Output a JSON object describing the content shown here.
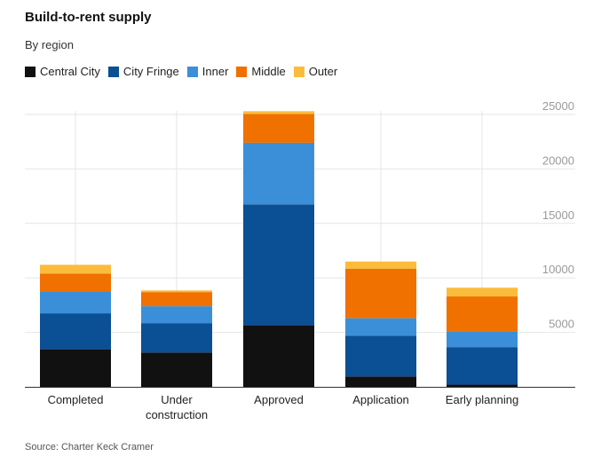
{
  "title": "Build-to-rent supply",
  "subtitle": "By region",
  "source": "Source: Charter Keck Cramer",
  "chart_data": {
    "type": "bar",
    "stacked": true,
    "categories": [
      "Completed",
      "Under construction",
      "Approved",
      "Application",
      "Early planning"
    ],
    "category_label_lines": [
      [
        "Completed"
      ],
      [
        "Under",
        "construction"
      ],
      [
        "Approved"
      ],
      [
        "Application"
      ],
      [
        "Early planning"
      ]
    ],
    "series": [
      {
        "name": "Central City",
        "color": "#111111",
        "values": [
          3450,
          3150,
          5650,
          950,
          200
        ]
      },
      {
        "name": "City Fringe",
        "color": "#0b4f95",
        "values": [
          3300,
          2700,
          11100,
          3750,
          3450
        ]
      },
      {
        "name": "Inner",
        "color": "#3b8fd9",
        "values": [
          2000,
          1550,
          5650,
          1600,
          1450
        ]
      },
      {
        "name": "Middle",
        "color": "#f07000",
        "values": [
          1650,
          1300,
          2650,
          4550,
          3200
        ]
      },
      {
        "name": "Outer",
        "color": "#fbbc3c",
        "values": [
          800,
          150,
          250,
          650,
          800
        ]
      }
    ],
    "yticks": [
      5000,
      10000,
      15000,
      20000,
      25000
    ],
    "ylim": [
      0,
      25000
    ],
    "y_axis_side": "right",
    "legend_position": "top-left",
    "grid": "vertical"
  }
}
